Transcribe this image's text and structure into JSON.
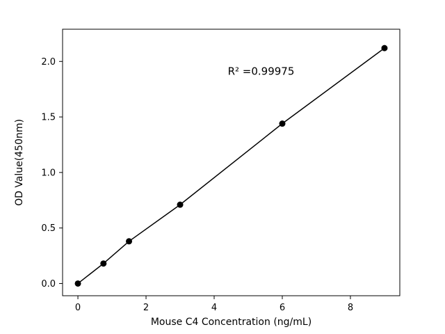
{
  "chart_data": {
    "type": "scatter",
    "title": "",
    "xlabel": "Mouse C4 Concentration (ng/mL)",
    "ylabel": "OD Value(450nm)",
    "x": [
      0,
      0.75,
      1.5,
      3,
      6,
      9
    ],
    "y": [
      0.0,
      0.18,
      0.38,
      0.71,
      1.44,
      2.12
    ],
    "xlim": [
      -0.45,
      9.45
    ],
    "ylim": [
      -0.11,
      2.29
    ],
    "xticks": [
      0,
      2,
      4,
      6,
      8
    ],
    "xtick_labels": [
      "0",
      "2",
      "4",
      "6",
      "8"
    ],
    "yticks": [
      0.0,
      0.5,
      1.0,
      1.5,
      2.0
    ],
    "ytick_labels": [
      "0.0",
      "0.5",
      "1.0",
      "1.5",
      "2.0"
    ],
    "grid": false,
    "legend": "none",
    "line_color": "#000000",
    "marker_color": "#000000",
    "marker_shape": "circle",
    "annotation": {
      "text": "R² =0.99975",
      "x": 4.4,
      "y": 1.88
    }
  }
}
